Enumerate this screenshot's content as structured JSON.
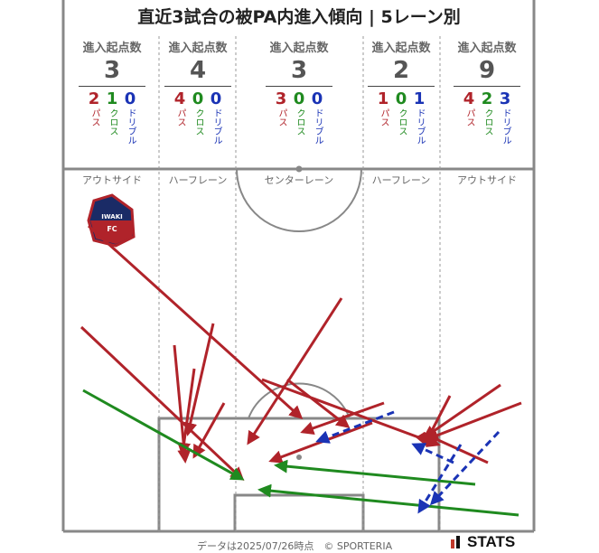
{
  "title": "直近3試合の被PA内進入傾向 | 5レーン別",
  "header_label": "進入起点数",
  "stat_labels": {
    "pass": "パス",
    "cross": "クロス",
    "dribble": "ドリブル"
  },
  "lanes": [
    {
      "name": "アウトサイド",
      "total": "3",
      "pass": "2",
      "cross": "1",
      "dribble": "0"
    },
    {
      "name": "ハーフレーン",
      "total": "4",
      "pass": "4",
      "cross": "0",
      "dribble": "0"
    },
    {
      "name": "センターレーン",
      "total": "3",
      "pass": "3",
      "cross": "0",
      "dribble": "0"
    },
    {
      "name": "ハーフレーン",
      "total": "2",
      "pass": "1",
      "cross": "0",
      "dribble": "1"
    },
    {
      "name": "アウトサイド",
      "total": "9",
      "pass": "4",
      "cross": "2",
      "dribble": "3"
    }
  ],
  "logo_text": {
    "top": "IWAKI",
    "bottom": "FC"
  },
  "colors": {
    "pass": "#b0232a",
    "cross": "#1f8a1f",
    "dribble": "#1a33b5",
    "pitch_line": "#888888"
  },
  "footer": "データは2025/07/26時点　© SPORTERIA",
  "brand": "STATS"
}
